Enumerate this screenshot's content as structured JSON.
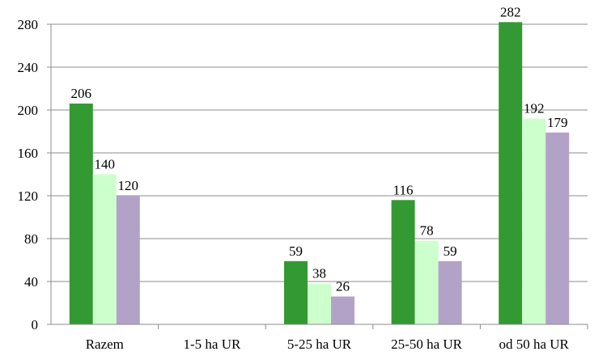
{
  "chart_data": {
    "type": "bar",
    "title": "",
    "xlabel": "",
    "ylabel": "",
    "categories": [
      "Razem",
      "1-5 ha UR",
      "5-25 ha UR",
      "25-50 ha UR",
      "od 50 ha UR"
    ],
    "series": [
      {
        "values": [
          206,
          null,
          59,
          116,
          282
        ],
        "color": "#339933"
      },
      {
        "values": [
          140,
          null,
          38,
          78,
          192
        ],
        "color": "#ccffcc"
      },
      {
        "values": [
          120,
          null,
          26,
          59,
          179
        ],
        "color": "#b3a2c7"
      }
    ],
    "ylim": [
      0,
      280
    ],
    "yticks": [
      0,
      40,
      80,
      120,
      160,
      200,
      240,
      280
    ],
    "grid": true,
    "legend": "none"
  }
}
